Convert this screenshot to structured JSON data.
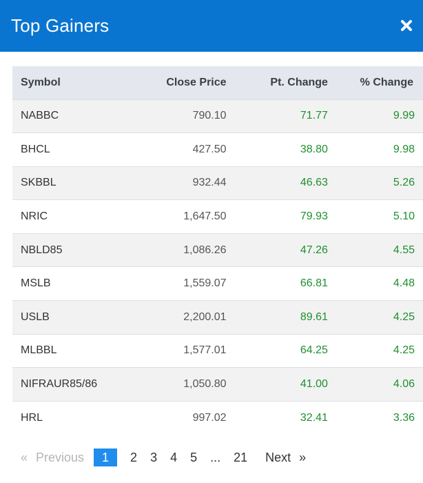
{
  "header": {
    "title": "Top Gainers",
    "close_icon": "close-icon",
    "background": "#0a75d0"
  },
  "table": {
    "columns": [
      "Symbol",
      "Close Price",
      "Pt. Change",
      "% Change"
    ],
    "rows": [
      {
        "symbol": "NABBC",
        "close": "790.10",
        "pt_change": "71.77",
        "pct_change": "9.99"
      },
      {
        "symbol": "BHCL",
        "close": "427.50",
        "pt_change": "38.80",
        "pct_change": "9.98"
      },
      {
        "symbol": "SKBBL",
        "close": "932.44",
        "pt_change": "46.63",
        "pct_change": "5.26"
      },
      {
        "symbol": "NRIC",
        "close": "1,647.50",
        "pt_change": "79.93",
        "pct_change": "5.10"
      },
      {
        "symbol": "NBLD85",
        "close": "1,086.26",
        "pt_change": "47.26",
        "pct_change": "4.55"
      },
      {
        "symbol": "MSLB",
        "close": "1,559.07",
        "pt_change": "66.81",
        "pct_change": "4.48"
      },
      {
        "symbol": "USLB",
        "close": "2,200.01",
        "pt_change": "89.61",
        "pct_change": "4.25"
      },
      {
        "symbol": "MLBBL",
        "close": "1,577.01",
        "pt_change": "64.25",
        "pct_change": "4.25"
      },
      {
        "symbol": "NIFRAUR85/86",
        "close": "1,050.80",
        "pt_change": "41.00",
        "pct_change": "4.06"
      },
      {
        "symbol": "HRL",
        "close": "997.02",
        "pt_change": "32.41",
        "pct_change": "3.36"
      }
    ],
    "positive_color": "#1e8f2e"
  },
  "pagination": {
    "prev_symbol": "«",
    "prev_label": "Previous",
    "pages": [
      "1",
      "2",
      "3",
      "4",
      "5",
      "...",
      "21"
    ],
    "current_page": "1",
    "next_label": "Next",
    "next_symbol": "»",
    "active_color": "#1f8ded"
  }
}
